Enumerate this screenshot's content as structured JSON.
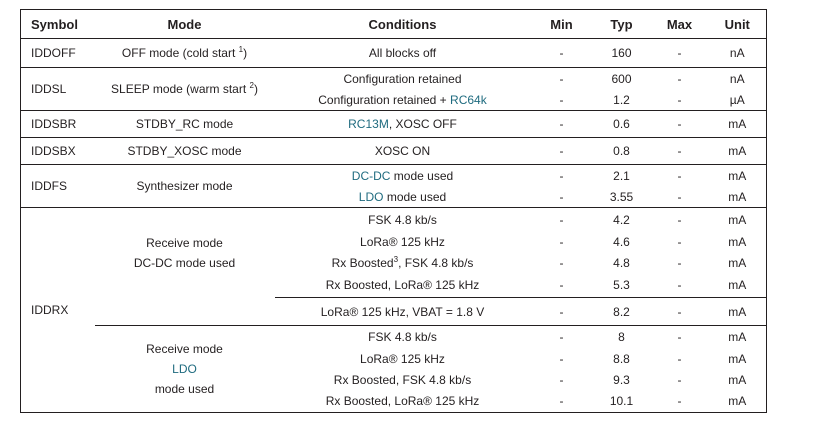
{
  "headers": [
    "Symbol",
    "Mode",
    "Conditions",
    "Min",
    "Typ",
    "Max",
    "Unit"
  ],
  "rows": {
    "iddoff": {
      "symbol": "IDDOFF",
      "mode": "OFF mode (cold start ",
      "mode_sup": "1",
      "mode_end": ")",
      "cond": "All blocks off",
      "min": "-",
      "typ": "160",
      "max": "-",
      "unit": "nA"
    },
    "iddsl": {
      "symbol": "IDDSL",
      "mode": "SLEEP mode (warm start ",
      "mode_sup": "2",
      "mode_end": ")",
      "r1": {
        "cond": "Configuration retained",
        "min": "-",
        "typ": "600",
        "max": "-",
        "unit": "nA"
      },
      "r2": {
        "cond": "Configuration retained + ",
        "cond_blue": "RC64k",
        "min": "-",
        "typ": "1.2",
        "max": "-",
        "unit": "µA"
      }
    },
    "iddsbr": {
      "symbol": "IDDSBR",
      "mode": "STDBY_RC mode",
      "cond_blue": "RC13M",
      "cond": ", XOSC OFF",
      "min": "-",
      "typ": "0.6",
      "max": "-",
      "unit": "mA"
    },
    "iddsbx": {
      "symbol": "IDDSBX",
      "mode": "STDBY_XOSC mode",
      "cond": "XOSC ON",
      "min": "-",
      "typ": "0.8",
      "max": "-",
      "unit": "mA"
    },
    "iddfs": {
      "symbol": "IDDFS",
      "mode": "Synthesizer mode",
      "r1": {
        "cond_blue": "DC-DC",
        "cond": " mode used",
        "min": "-",
        "typ": "2.1",
        "max": "-",
        "unit": "mA"
      },
      "r2": {
        "cond_blue": "LDO",
        "cond": " mode used",
        "min": "-",
        "typ": "3.55",
        "max": "-",
        "unit": "mA"
      }
    },
    "iddrx": {
      "symbol": "IDDRX",
      "dcdc_mode_line1": "Receive mode",
      "dcdc_mode_line2": "DC-DC mode used",
      "dcdc": [
        {
          "cond": "FSK 4.8 kb/s",
          "min": "-",
          "typ": "4.2",
          "max": "-",
          "unit": "mA"
        },
        {
          "cond": "LoRa® 125 kHz",
          "min": "-",
          "typ": "4.6",
          "max": "-",
          "unit": "mA"
        },
        {
          "cond": "Rx Boosted",
          "cond_sup": "3",
          "cond_end": ", FSK 4.8 kb/s",
          "min": "-",
          "typ": "4.8",
          "max": "-",
          "unit": "mA"
        },
        {
          "cond": "Rx Boosted, LoRa® 125 kHz",
          "min": "-",
          "typ": "5.3",
          "max": "-",
          "unit": "mA"
        }
      ],
      "vbat": {
        "cond": "LoRa® 125 kHz, VBAT = 1.8 V",
        "min": "-",
        "typ": "8.2",
        "max": "-",
        "unit": "mA"
      },
      "ldo_mode_line1": "Receive mode",
      "ldo_mode_line2_blue": "LDO",
      "ldo_mode_line2": " mode used",
      "ldo": [
        {
          "cond": "FSK 4.8 kb/s",
          "min": "-",
          "typ": "8",
          "max": "-",
          "unit": "mA"
        },
        {
          "cond": "LoRa® 125 kHz",
          "min": "-",
          "typ": "8.8",
          "max": "-",
          "unit": "mA"
        },
        {
          "cond": "Rx Boosted, FSK 4.8 kb/s",
          "min": "-",
          "typ": "9.3",
          "max": "-",
          "unit": "mA"
        },
        {
          "cond": "Rx Boosted, LoRa® 125 kHz",
          "min": "-",
          "typ": "10.1",
          "max": "-",
          "unit": "mA"
        }
      ]
    }
  },
  "colors": {
    "link": "#1f6b7f",
    "text": "#231f20"
  }
}
